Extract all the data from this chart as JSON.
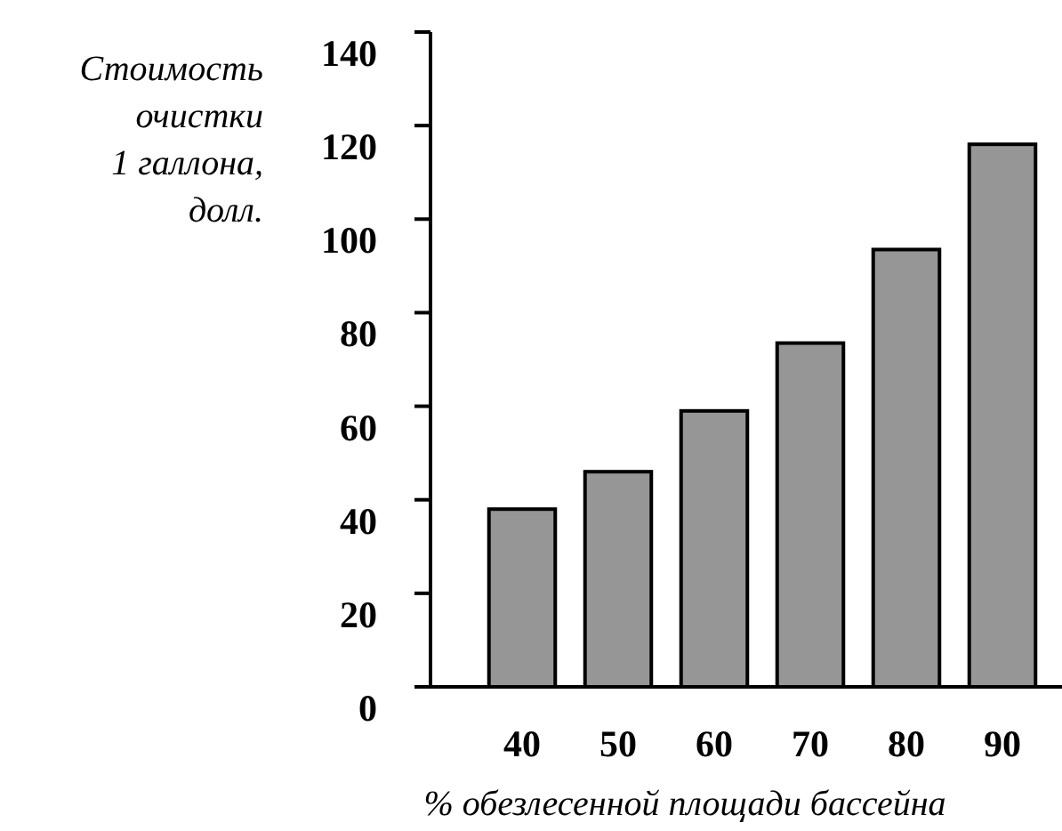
{
  "chart_data": {
    "type": "bar",
    "ylabel": "Стоимость\nочистки\n1 галлона,\nдолл.",
    "xlabel": "% обезлесенной площади бассейна",
    "categories": [
      "40",
      "50",
      "60",
      "70",
      "80",
      "90"
    ],
    "values": [
      38,
      46,
      59,
      73.5,
      93.5,
      116
    ],
    "color": "#969696",
    "ylim": [
      0,
      140
    ],
    "yticks": [
      0,
      20,
      40,
      60,
      80,
      100,
      120,
      140
    ],
    "grid": false
  }
}
